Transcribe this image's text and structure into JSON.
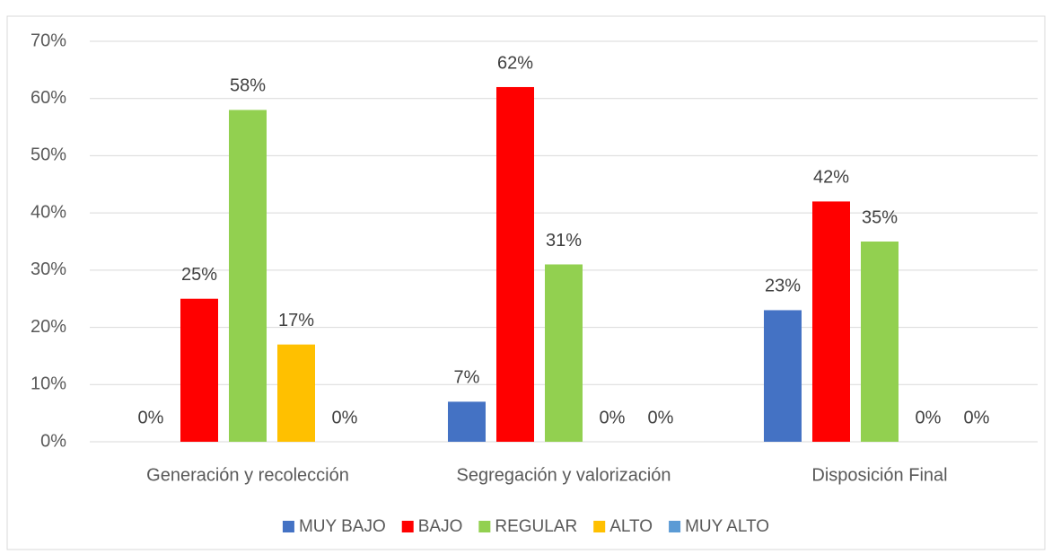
{
  "chart_data": {
    "type": "bar",
    "categories": [
      "Generación y recolección",
      "Segregación y valorización",
      "Disposición Final"
    ],
    "series": [
      {
        "name": "MUY BAJO",
        "color": "#4472c4",
        "values": [
          0,
          7,
          23
        ],
        "value_labels": [
          "0%",
          "7%",
          "23%"
        ]
      },
      {
        "name": "BAJO",
        "color": "#ff0000",
        "values": [
          25,
          62,
          42
        ],
        "value_labels": [
          "25%",
          "62%",
          "42%"
        ]
      },
      {
        "name": "REGULAR",
        "color": "#92d050",
        "values": [
          58,
          31,
          35
        ],
        "value_labels": [
          "58%",
          "31%",
          "35%"
        ]
      },
      {
        "name": "ALTO",
        "color": "#ffc000",
        "values": [
          17,
          0,
          0
        ],
        "value_labels": [
          "17%",
          "0%",
          "0%"
        ]
      },
      {
        "name": "MUY ALTO",
        "color": "#5b9bd5",
        "values": [
          0,
          0,
          0
        ],
        "value_labels": [
          "0%",
          "0%",
          "0%"
        ]
      }
    ],
    "ylim": [
      0,
      70
    ],
    "yticks": [
      {
        "value": 0,
        "label": "0%"
      },
      {
        "value": 10,
        "label": "10%"
      },
      {
        "value": 20,
        "label": "20%"
      },
      {
        "value": 30,
        "label": "30%"
      },
      {
        "value": 40,
        "label": "40%"
      },
      {
        "value": 50,
        "label": "50%"
      },
      {
        "value": 60,
        "label": "60%"
      },
      {
        "value": 70,
        "label": "70%"
      }
    ],
    "grid": true,
    "legend": "bottom"
  }
}
